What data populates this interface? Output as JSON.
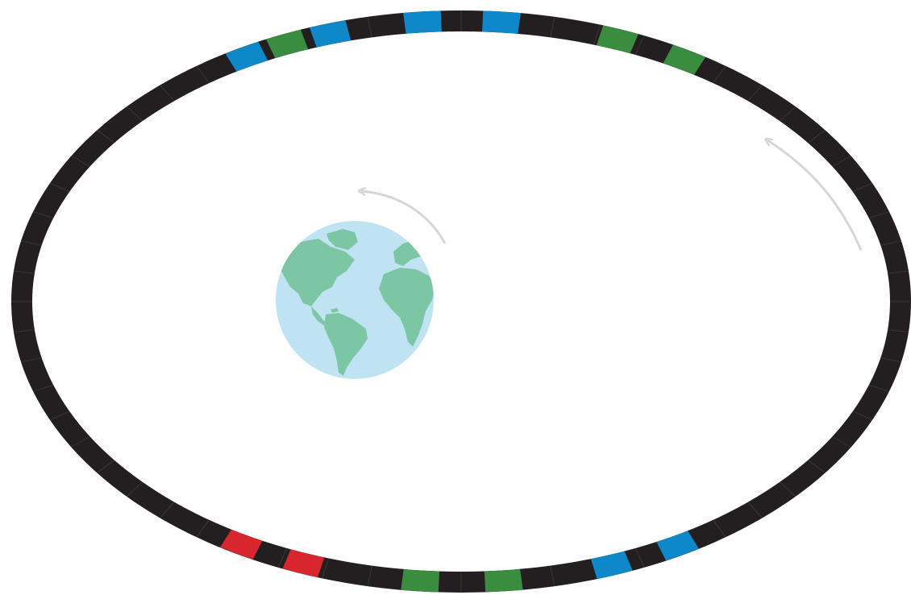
{
  "diagram": {
    "type": "elliptical-orbit",
    "colors": {
      "background": "#ffffff",
      "ring": "#231f20",
      "blue": "#0e88c8",
      "green": "#3a8c3e",
      "red": "#d8262e",
      "arrow": "#d6d6d6",
      "ocean": "#bfe3f2",
      "land": "#7cc6a3"
    },
    "center_body": {
      "icon": "earth-globe-icon"
    },
    "motion_arrows": [
      {
        "id": "orbit-arrow-inner",
        "direction": "counterclockwise"
      },
      {
        "id": "orbit-arrow-outer",
        "direction": "counterclockwise"
      }
    ],
    "ring_segment_groups": [
      {
        "id": "top-left",
        "colors": [
          "blue",
          "green",
          "blue"
        ]
      },
      {
        "id": "top-center",
        "colors": [
          "blue",
          "blue"
        ]
      },
      {
        "id": "top-right",
        "colors": [
          "green",
          "green"
        ]
      },
      {
        "id": "bottom-left",
        "colors": [
          "blue",
          "blue"
        ]
      },
      {
        "id": "bottom-center",
        "colors": [
          "green",
          "green"
        ]
      },
      {
        "id": "bottom-right",
        "colors": [
          "red",
          "red"
        ]
      }
    ]
  }
}
